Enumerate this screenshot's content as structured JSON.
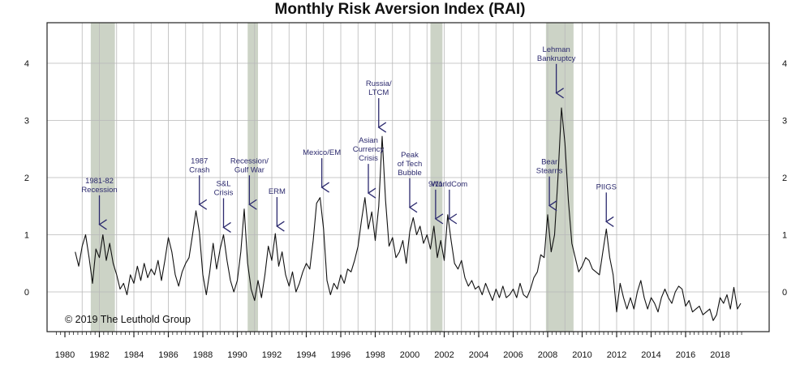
{
  "chart_data": {
    "type": "line",
    "title": "Monthly Risk Aversion Index (RAI)",
    "xlabel": "",
    "ylabel": "",
    "xlim": [
      1980,
      2019.6
    ],
    "ylim": [
      -0.7,
      4.7
    ],
    "y_ticks": [
      0,
      1,
      2,
      3,
      4
    ],
    "x_ticks": [
      1980,
      1982,
      1984,
      1986,
      1988,
      1990,
      1992,
      1994,
      1996,
      1998,
      2000,
      2002,
      2004,
      2006,
      2008,
      2010,
      2012,
      2014,
      2016,
      2018
    ],
    "grid": "vertical yearly lines and horizontal lines at y ticks",
    "copyright": "© 2019 The Leuthold Group",
    "recessions": [
      {
        "start": 1981.5,
        "end": 1982.9
      },
      {
        "start": 1990.6,
        "end": 1991.2
      },
      {
        "start": 2001.2,
        "end": 2001.9
      },
      {
        "start": 2007.9,
        "end": 2009.5
      }
    ],
    "annotations": [
      {
        "lines": [
          "1981-82",
          "Recession"
        ],
        "x": 1982.0,
        "y": 1.15
      },
      {
        "lines": [
          "1987",
          "Crash"
        ],
        "x": 1987.8,
        "y": 1.5
      },
      {
        "lines": [
          "S&L",
          "Crisis"
        ],
        "x": 1989.2,
        "y": 1.1
      },
      {
        "lines": [
          "Recession/",
          "Gulf War"
        ],
        "x": 1990.7,
        "y": 1.5
      },
      {
        "lines": [
          "ERM"
        ],
        "x": 1992.3,
        "y": 1.12
      },
      {
        "lines": [
          "Mexico/EM"
        ],
        "x": 1994.9,
        "y": 1.8
      },
      {
        "lines": [
          "Asian",
          "Currency",
          "Crisis"
        ],
        "x": 1997.6,
        "y": 1.7
      },
      {
        "lines": [
          "Russia/",
          "LTCM"
        ],
        "x": 1998.2,
        "y": 2.85
      },
      {
        "lines": [
          "Peak",
          "of Tech",
          "Bubble"
        ],
        "x": 2000.0,
        "y": 1.45
      },
      {
        "lines": [
          "9/11"
        ],
        "x": 2001.5,
        "y": 1.25
      },
      {
        "lines": [
          "WorldCom"
        ],
        "x": 2002.3,
        "y": 1.25
      },
      {
        "lines": [
          "Bear",
          "Stearns"
        ],
        "x": 2008.1,
        "y": 1.48
      },
      {
        "lines": [
          "Lehman",
          "Bankruptcy"
        ],
        "x": 2008.5,
        "y": 3.45
      },
      {
        "lines": [
          "PIIGS"
        ],
        "x": 2011.4,
        "y": 1.2
      }
    ],
    "anchors": [
      [
        1980.6,
        0.7
      ],
      [
        1980.8,
        0.45
      ],
      [
        1981.0,
        0.8
      ],
      [
        1981.2,
        1.0
      ],
      [
        1981.4,
        0.6
      ],
      [
        1981.6,
        0.15
      ],
      [
        1981.8,
        0.75
      ],
      [
        1982.0,
        0.6
      ],
      [
        1982.2,
        1.0
      ],
      [
        1982.4,
        0.55
      ],
      [
        1982.6,
        0.85
      ],
      [
        1982.8,
        0.5
      ],
      [
        1983.0,
        0.3
      ],
      [
        1983.2,
        0.05
      ],
      [
        1983.4,
        0.15
      ],
      [
        1983.6,
        -0.05
      ],
      [
        1983.8,
        0.3
      ],
      [
        1984.0,
        0.15
      ],
      [
        1984.2,
        0.45
      ],
      [
        1984.4,
        0.2
      ],
      [
        1984.6,
        0.5
      ],
      [
        1984.8,
        0.25
      ],
      [
        1985.0,
        0.4
      ],
      [
        1985.2,
        0.3
      ],
      [
        1985.4,
        0.55
      ],
      [
        1985.6,
        0.2
      ],
      [
        1985.8,
        0.55
      ],
      [
        1986.0,
        0.95
      ],
      [
        1986.2,
        0.7
      ],
      [
        1986.4,
        0.3
      ],
      [
        1986.6,
        0.1
      ],
      [
        1986.8,
        0.35
      ],
      [
        1987.0,
        0.5
      ],
      [
        1987.2,
        0.6
      ],
      [
        1987.4,
        1.0
      ],
      [
        1987.6,
        1.42
      ],
      [
        1987.8,
        1.05
      ],
      [
        1988.0,
        0.3
      ],
      [
        1988.2,
        -0.05
      ],
      [
        1988.4,
        0.35
      ],
      [
        1988.6,
        0.85
      ],
      [
        1988.8,
        0.4
      ],
      [
        1989.0,
        0.75
      ],
      [
        1989.2,
        1.0
      ],
      [
        1989.4,
        0.55
      ],
      [
        1989.6,
        0.2
      ],
      [
        1989.8,
        0.0
      ],
      [
        1990.0,
        0.2
      ],
      [
        1990.2,
        0.7
      ],
      [
        1990.4,
        1.45
      ],
      [
        1990.6,
        0.5
      ],
      [
        1990.8,
        0.05
      ],
      [
        1991.0,
        -0.15
      ],
      [
        1991.2,
        0.2
      ],
      [
        1991.4,
        -0.1
      ],
      [
        1991.6,
        0.3
      ],
      [
        1991.8,
        0.8
      ],
      [
        1992.0,
        0.55
      ],
      [
        1992.2,
        1.02
      ],
      [
        1992.4,
        0.45
      ],
      [
        1992.6,
        0.7
      ],
      [
        1992.8,
        0.3
      ],
      [
        1993.0,
        0.1
      ],
      [
        1993.2,
        0.35
      ],
      [
        1993.4,
        0.0
      ],
      [
        1993.6,
        0.15
      ],
      [
        1993.8,
        0.35
      ],
      [
        1994.0,
        0.5
      ],
      [
        1994.2,
        0.4
      ],
      [
        1994.4,
        0.9
      ],
      [
        1994.6,
        1.55
      ],
      [
        1994.8,
        1.65
      ],
      [
        1995.0,
        1.1
      ],
      [
        1995.2,
        0.2
      ],
      [
        1995.4,
        -0.05
      ],
      [
        1995.6,
        0.15
      ],
      [
        1995.8,
        0.05
      ],
      [
        1996.0,
        0.3
      ],
      [
        1996.2,
        0.15
      ],
      [
        1996.4,
        0.4
      ],
      [
        1996.6,
        0.35
      ],
      [
        1996.8,
        0.55
      ],
      [
        1997.0,
        0.8
      ],
      [
        1997.2,
        1.25
      ],
      [
        1997.4,
        1.65
      ],
      [
        1997.6,
        1.1
      ],
      [
        1997.8,
        1.4
      ],
      [
        1998.0,
        0.9
      ],
      [
        1998.2,
        1.5
      ],
      [
        1998.4,
        2.72
      ],
      [
        1998.6,
        1.6
      ],
      [
        1998.8,
        0.8
      ],
      [
        1999.0,
        0.95
      ],
      [
        1999.2,
        0.6
      ],
      [
        1999.4,
        0.7
      ],
      [
        1999.6,
        0.9
      ],
      [
        1999.8,
        0.5
      ],
      [
        2000.0,
        1.05
      ],
      [
        2000.2,
        1.3
      ],
      [
        2000.4,
        1.0
      ],
      [
        2000.6,
        1.15
      ],
      [
        2000.8,
        0.85
      ],
      [
        2001.0,
        1.0
      ],
      [
        2001.2,
        0.75
      ],
      [
        2001.4,
        1.15
      ],
      [
        2001.6,
        0.6
      ],
      [
        2001.8,
        0.9
      ],
      [
        2002.0,
        0.55
      ],
      [
        2002.2,
        1.35
      ],
      [
        2002.4,
        0.9
      ],
      [
        2002.6,
        0.5
      ],
      [
        2002.8,
        0.4
      ],
      [
        2003.0,
        0.55
      ],
      [
        2003.2,
        0.25
      ],
      [
        2003.4,
        0.1
      ],
      [
        2003.6,
        0.2
      ],
      [
        2003.8,
        0.05
      ],
      [
        2004.0,
        0.1
      ],
      [
        2004.2,
        -0.05
      ],
      [
        2004.4,
        0.15
      ],
      [
        2004.6,
        0.0
      ],
      [
        2004.8,
        -0.15
      ],
      [
        2005.0,
        0.05
      ],
      [
        2005.2,
        -0.1
      ],
      [
        2005.4,
        0.1
      ],
      [
        2005.6,
        -0.1
      ],
      [
        2005.8,
        -0.05
      ],
      [
        2006.0,
        0.05
      ],
      [
        2006.2,
        -0.1
      ],
      [
        2006.4,
        0.15
      ],
      [
        2006.6,
        -0.05
      ],
      [
        2006.8,
        -0.1
      ],
      [
        2007.0,
        0.05
      ],
      [
        2007.2,
        0.25
      ],
      [
        2007.4,
        0.35
      ],
      [
        2007.6,
        0.65
      ],
      [
        2007.8,
        0.6
      ],
      [
        2008.0,
        1.35
      ],
      [
        2008.2,
        0.7
      ],
      [
        2008.4,
        1.0
      ],
      [
        2008.6,
        2.0
      ],
      [
        2008.8,
        3.22
      ],
      [
        2009.0,
        2.6
      ],
      [
        2009.2,
        1.6
      ],
      [
        2009.4,
        0.85
      ],
      [
        2009.6,
        0.6
      ],
      [
        2009.8,
        0.35
      ],
      [
        2010.0,
        0.45
      ],
      [
        2010.2,
        0.6
      ],
      [
        2010.4,
        0.55
      ],
      [
        2010.6,
        0.4
      ],
      [
        2010.8,
        0.35
      ],
      [
        2011.0,
        0.3
      ],
      [
        2011.2,
        0.7
      ],
      [
        2011.4,
        1.1
      ],
      [
        2011.6,
        0.6
      ],
      [
        2011.8,
        0.3
      ],
      [
        2012.0,
        -0.35
      ],
      [
        2012.2,
        0.15
      ],
      [
        2012.4,
        -0.1
      ],
      [
        2012.6,
        -0.3
      ],
      [
        2012.8,
        -0.1
      ],
      [
        2013.0,
        -0.3
      ],
      [
        2013.2,
        0.0
      ],
      [
        2013.4,
        0.2
      ],
      [
        2013.6,
        -0.1
      ],
      [
        2013.8,
        -0.3
      ],
      [
        2014.0,
        -0.1
      ],
      [
        2014.2,
        -0.2
      ],
      [
        2014.4,
        -0.35
      ],
      [
        2014.6,
        -0.1
      ],
      [
        2014.8,
        0.05
      ],
      [
        2015.0,
        -0.1
      ],
      [
        2015.2,
        -0.2
      ],
      [
        2015.4,
        0.0
      ],
      [
        2015.6,
        0.1
      ],
      [
        2015.8,
        0.05
      ],
      [
        2016.0,
        -0.25
      ],
      [
        2016.2,
        -0.15
      ],
      [
        2016.4,
        -0.35
      ],
      [
        2016.6,
        -0.3
      ],
      [
        2016.8,
        -0.25
      ],
      [
        2017.0,
        -0.4
      ],
      [
        2017.2,
        -0.35
      ],
      [
        2017.4,
        -0.3
      ],
      [
        2017.6,
        -0.5
      ],
      [
        2017.8,
        -0.4
      ],
      [
        2018.0,
        -0.1
      ],
      [
        2018.2,
        -0.2
      ],
      [
        2018.4,
        -0.05
      ],
      [
        2018.6,
        -0.3
      ],
      [
        2018.8,
        0.08
      ],
      [
        2019.0,
        -0.3
      ],
      [
        2019.2,
        -0.2
      ]
    ]
  }
}
